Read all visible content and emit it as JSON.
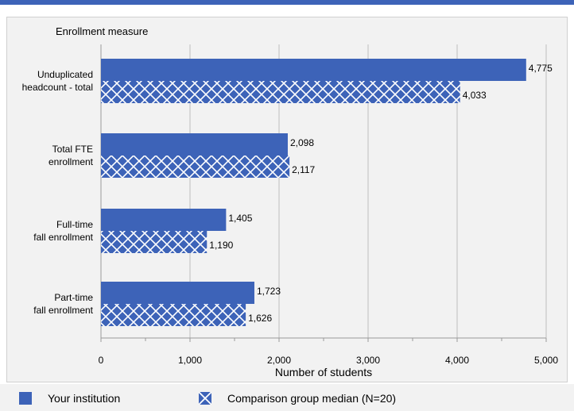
{
  "chart_data": {
    "type": "bar",
    "orientation": "horizontal",
    "y_axis_title": "Enrollment measure",
    "xlabel": "Number of students",
    "xlim": [
      0,
      5000
    ],
    "xticks": [
      0,
      1000,
      2000,
      3000,
      4000,
      5000
    ],
    "xtick_labels": [
      "0",
      "1,000",
      "2,000",
      "3,000",
      "4,000",
      "5,000"
    ],
    "categories": [
      [
        "Unduplicated",
        "headcount - total"
      ],
      [
        "Total FTE",
        "enrollment"
      ],
      [
        "Full-time",
        "fall enrollment"
      ],
      [
        "Part-time",
        "fall enrollment"
      ]
    ],
    "series": [
      {
        "name": "Your institution",
        "values": [
          4775,
          2098,
          1405,
          1723
        ],
        "labels": [
          "4,775",
          "2,098",
          "1,405",
          "1,723"
        ],
        "color": "#3d63b8",
        "pattern": "solid"
      },
      {
        "name": "Comparison group median (N=20)",
        "values": [
          4033,
          2117,
          1190,
          1626
        ],
        "labels": [
          "4,033",
          "2,117",
          "1,190",
          "1,626"
        ],
        "color": "#3d63b8",
        "pattern": "crosshatch"
      }
    ],
    "grid": true,
    "legend_position": "bottom"
  }
}
